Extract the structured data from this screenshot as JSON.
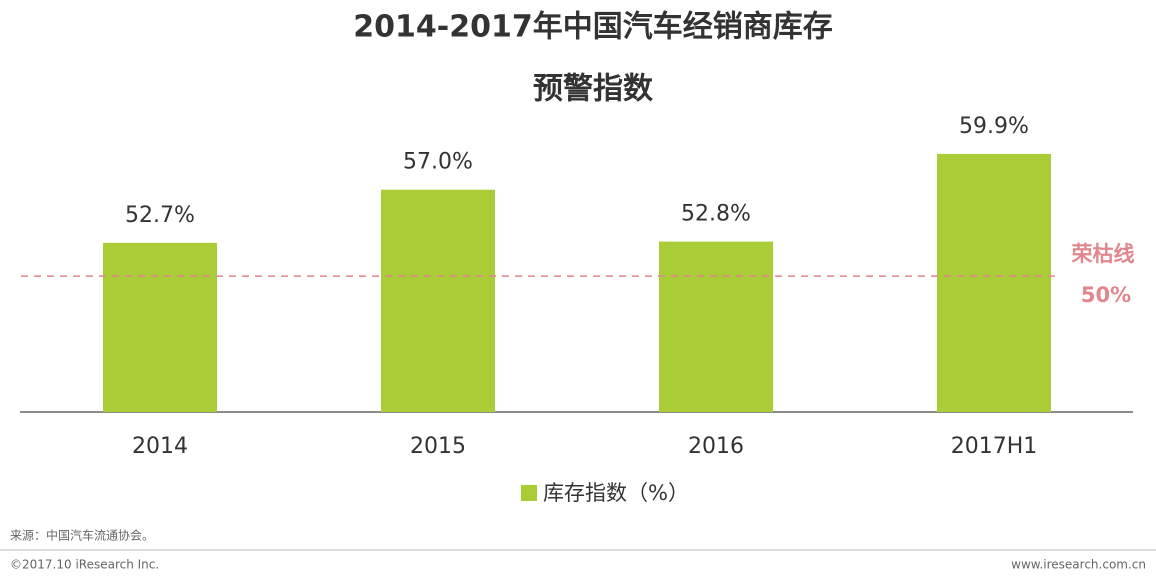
{
  "chart_data": {
    "type": "bar",
    "title": [
      "2014-2017年中国汽车经销商库存",
      "预警指数"
    ],
    "categories": [
      "2014",
      "2015",
      "2016",
      "2017H1"
    ],
    "series": [
      {
        "name": "库存指数（%）",
        "color": "#a9cc37",
        "values": [
          52.7,
          57.0,
          52.8,
          59.9
        ],
        "value_labels": [
          "52.7%",
          "57.0%",
          "52.8%",
          "59.9%"
        ]
      }
    ],
    "ylim": [
      39,
      62
    ],
    "reference_line": {
      "name": "荣枯线",
      "value": 50,
      "label": "50%",
      "color": "#e0868d"
    }
  },
  "footer": {
    "source": "来源：中国汽车流通协会。",
    "copyright": "©2017.10 iResearch Inc.",
    "url": "www.iresearch.com.cn"
  }
}
